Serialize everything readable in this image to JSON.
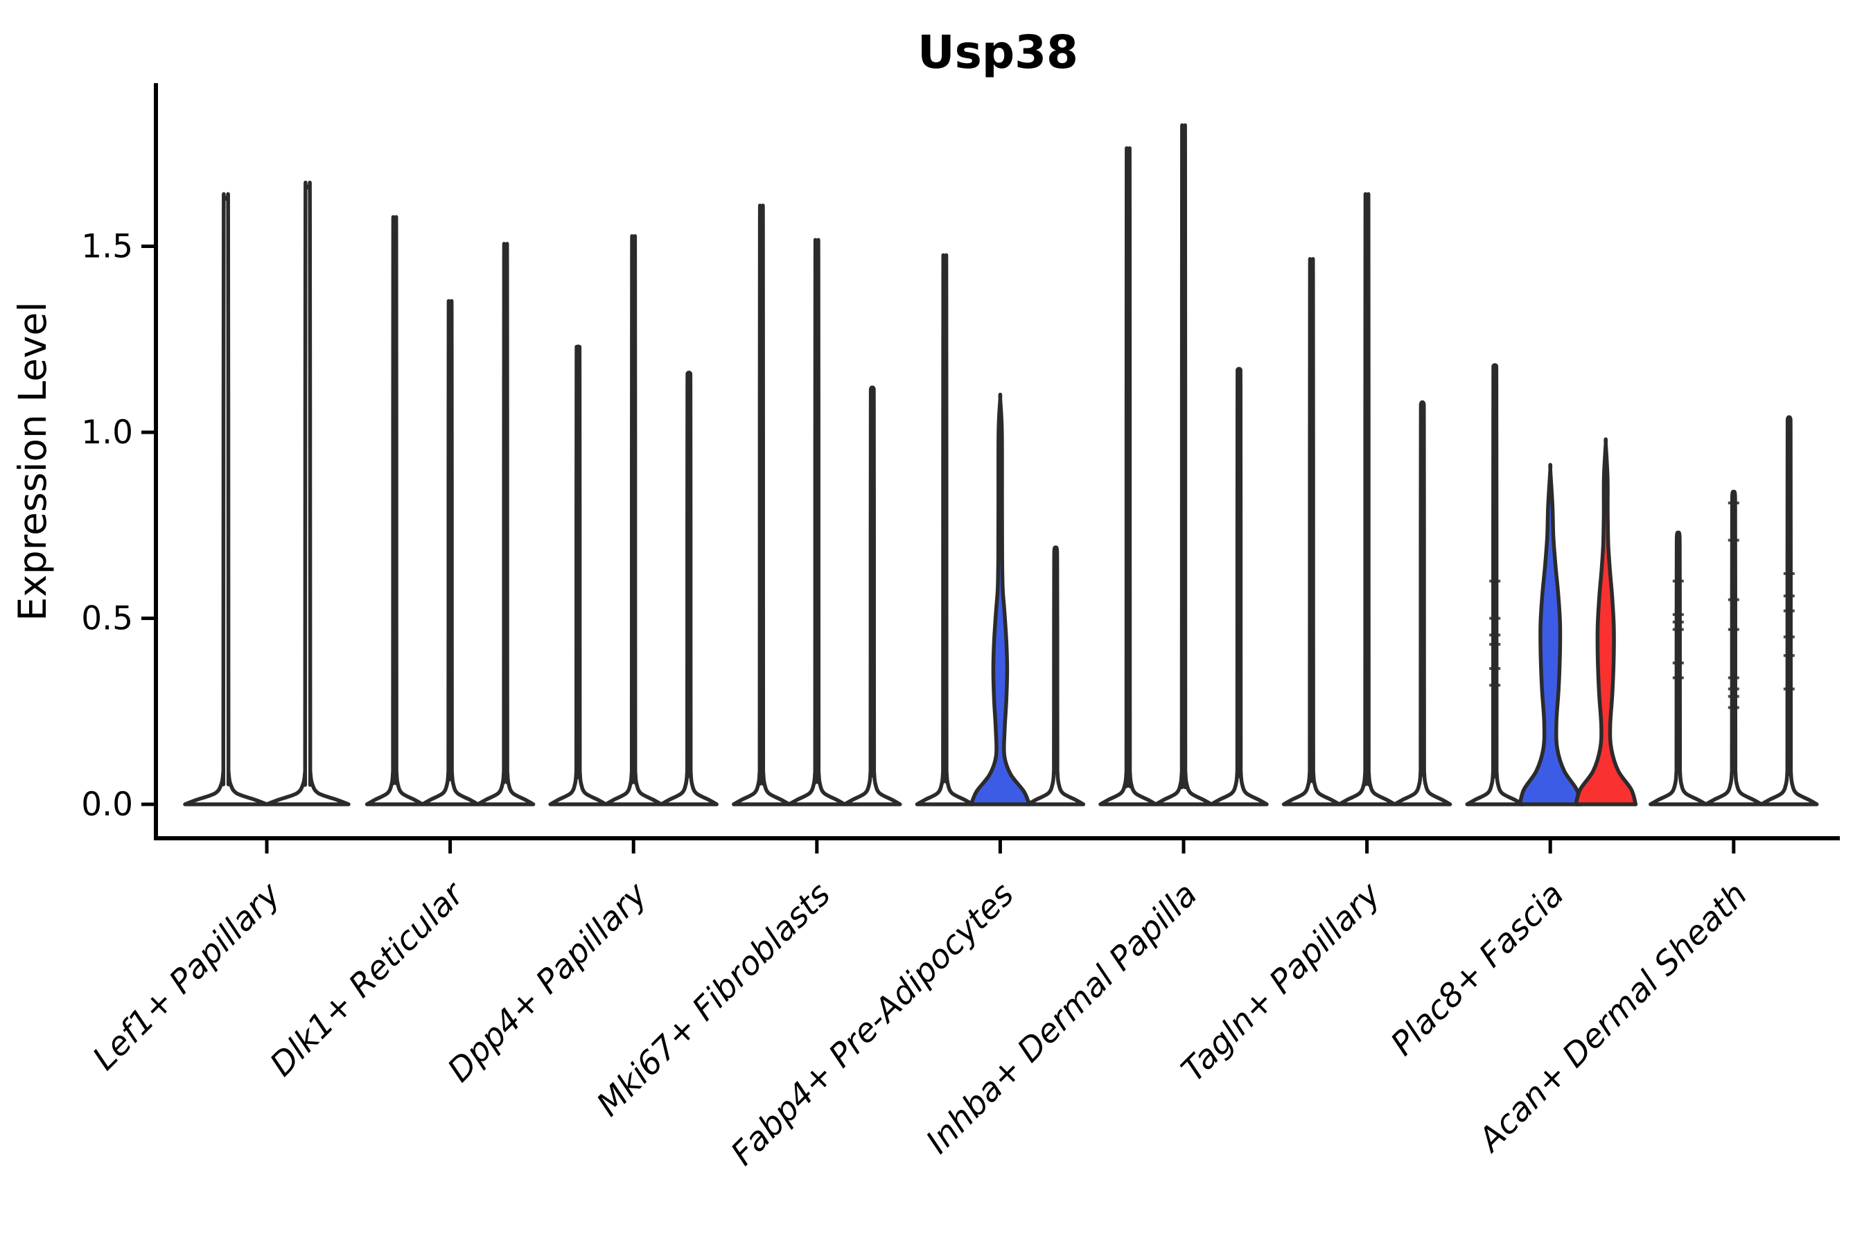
{
  "chart_data": {
    "type": "violin",
    "title": "Usp38",
    "ylabel": "Expression Level",
    "xlabel": "",
    "ytick_labels": [
      "0.0",
      "0.5",
      "1.0",
      "1.5"
    ],
    "ytick_values": [
      0.0,
      0.5,
      1.0,
      1.5
    ],
    "ylim": [
      -0.09,
      1.94
    ],
    "grid": false,
    "legend": "none",
    "colors": {
      "blue_fill": "#3D5CE5",
      "red_fill": "#F93131",
      "white_fill": "#FFFFFF",
      "violin_outline": "#2B2B2B",
      "axis": "#000000",
      "background": "#FFFFFF"
    },
    "categories": [
      {
        "label": "Lef1+ Papillary",
        "violins": [
          {
            "max": 1.63,
            "fill": "white"
          },
          {
            "max": 1.66,
            "fill": "white"
          }
        ]
      },
      {
        "label": "Dlk1+ Reticular",
        "violins": [
          {
            "max": 1.57,
            "fill": "white"
          },
          {
            "max": 1.35,
            "fill": "white"
          },
          {
            "max": 1.5,
            "fill": "white"
          }
        ]
      },
      {
        "label": "Dpp4+ Papillary",
        "violins": [
          {
            "max": 1.23,
            "fill": "white"
          },
          {
            "max": 1.52,
            "fill": "white"
          },
          {
            "max": 1.16,
            "fill": "white"
          }
        ]
      },
      {
        "label": "Mki67+ Fibroblasts",
        "violins": [
          {
            "max": 1.6,
            "fill": "white"
          },
          {
            "max": 1.51,
            "fill": "white"
          },
          {
            "max": 1.12,
            "fill": "white"
          }
        ]
      },
      {
        "label": "Fabp4+ Pre-Adipocytes",
        "violins": [
          {
            "max": 1.47,
            "fill": "white"
          },
          {
            "max": 1.09,
            "fill": "blue",
            "profile": [
              [
                0,
                1.05
              ],
              [
                0.035,
                0.85
              ],
              [
                0.08,
                0.38
              ],
              [
                0.13,
                0.15
              ],
              [
                0.2,
                0.16
              ],
              [
                0.28,
                0.22
              ],
              [
                0.36,
                0.25
              ],
              [
                0.44,
                0.22
              ],
              [
                0.52,
                0.15
              ],
              [
                0.58,
                0.09
              ],
              [
                0.66,
                0.07
              ],
              [
                0.8,
                0.065
              ],
              [
                1.0,
                0.06
              ],
              [
                1.09,
                0
              ]
            ]
          },
          {
            "max": 0.69,
            "fill": "white"
          }
        ]
      },
      {
        "label": "Inhba+ Dermal Papilla",
        "violins": [
          {
            "max": 1.75,
            "fill": "white"
          },
          {
            "max": 1.81,
            "fill": "white"
          },
          {
            "max": 1.17,
            "fill": "white"
          }
        ]
      },
      {
        "label": "Tagln+ Papillary",
        "violins": [
          {
            "max": 1.46,
            "fill": "white"
          },
          {
            "max": 1.63,
            "fill": "white"
          },
          {
            "max": 1.08,
            "fill": "white"
          }
        ]
      },
      {
        "label": "Plac8+ Fascia",
        "violins": [
          {
            "max": 1.18,
            "fill": "white",
            "points": [
              0.6,
              0.5,
              0.455,
              0.43,
              0.365,
              0.32
            ]
          },
          {
            "max": 0.9,
            "fill": "blue",
            "profile": [
              [
                0,
                1.1
              ],
              [
                0.04,
                0.95
              ],
              [
                0.09,
                0.5
              ],
              [
                0.15,
                0.25
              ],
              [
                0.22,
                0.22
              ],
              [
                0.31,
                0.3
              ],
              [
                0.41,
                0.35
              ],
              [
                0.49,
                0.35
              ],
              [
                0.57,
                0.28
              ],
              [
                0.64,
                0.19
              ],
              [
                0.72,
                0.11
              ],
              [
                0.8,
                0.08
              ],
              [
                0.9,
                0
              ]
            ]
          },
          {
            "max": 0.97,
            "fill": "red",
            "profile": [
              [
                0,
                1.08
              ],
              [
                0.04,
                0.92
              ],
              [
                0.09,
                0.45
              ],
              [
                0.15,
                0.2
              ],
              [
                0.21,
                0.16
              ],
              [
                0.3,
                0.24
              ],
              [
                0.4,
                0.29
              ],
              [
                0.48,
                0.29
              ],
              [
                0.56,
                0.23
              ],
              [
                0.63,
                0.15
              ],
              [
                0.7,
                0.09
              ],
              [
                0.78,
                0.07
              ],
              [
                0.88,
                0.065
              ],
              [
                0.97,
                0
              ]
            ]
          }
        ]
      },
      {
        "label": "Acan+ Dermal Sheath",
        "violins": [
          {
            "max": 0.73,
            "fill": "white",
            "points": [
              0.6,
              0.51,
              0.49,
              0.47,
              0.38,
              0.34
            ]
          },
          {
            "max": 0.84,
            "fill": "white",
            "points": [
              0.81,
              0.71,
              0.55,
              0.47,
              0.34,
              0.31,
              0.29,
              0.26
            ]
          },
          {
            "max": 1.04,
            "fill": "white",
            "points": [
              0.62,
              0.56,
              0.52,
              0.45,
              0.4,
              0.31
            ]
          }
        ]
      }
    ]
  }
}
